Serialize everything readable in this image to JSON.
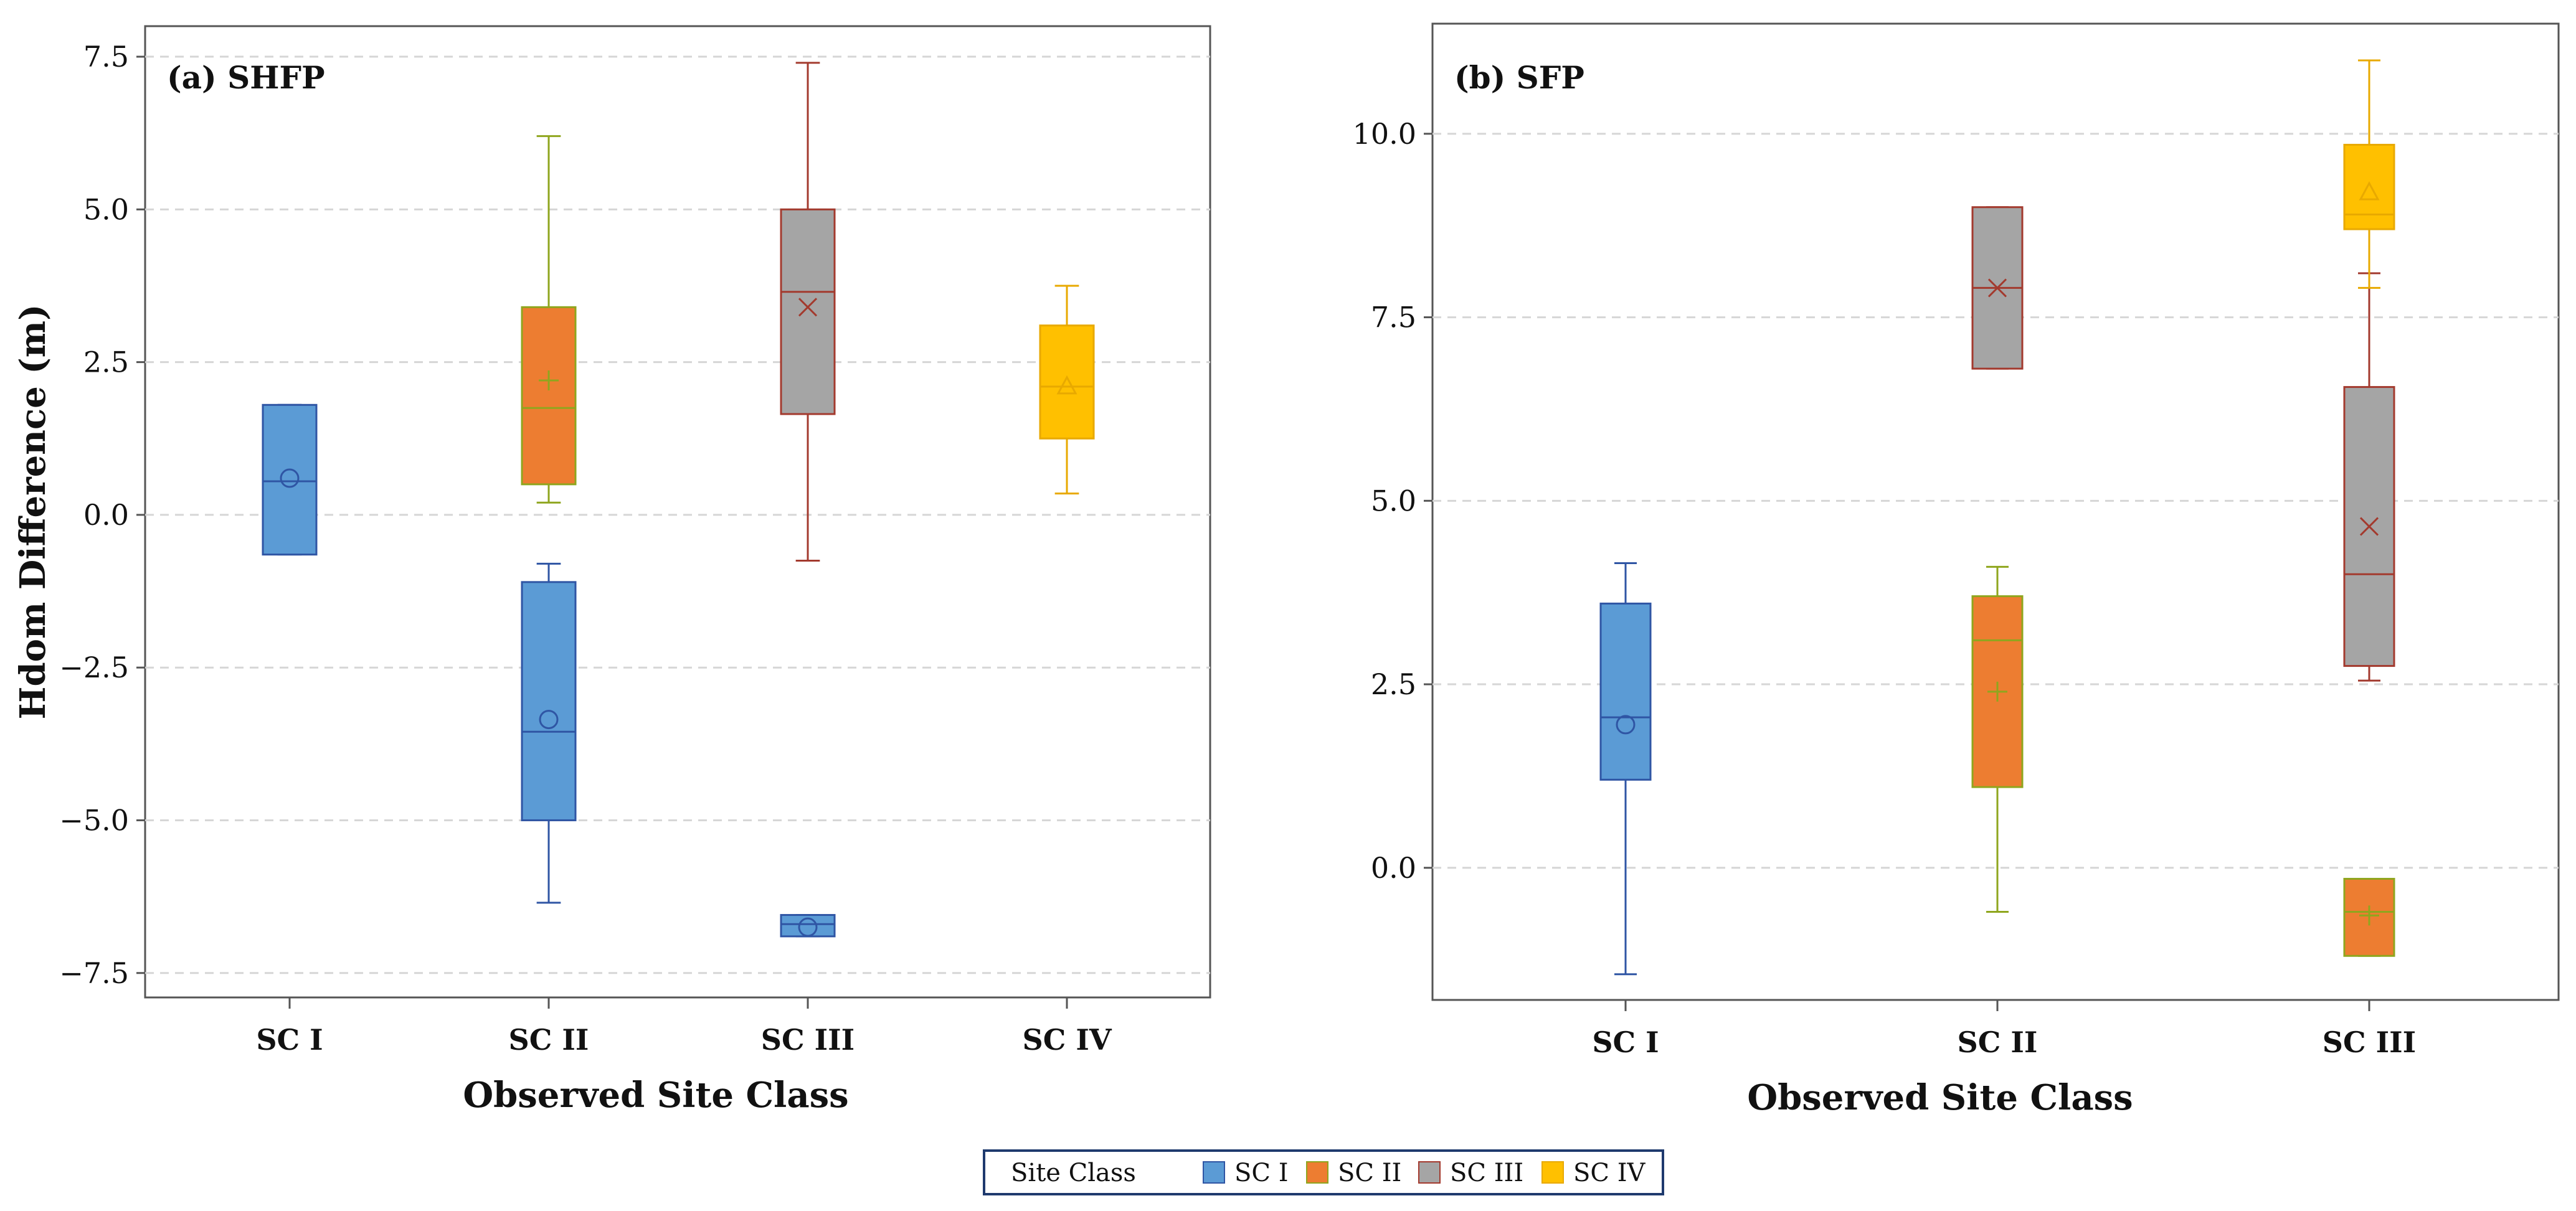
{
  "chart_data": [
    {
      "type": "box",
      "title": "(a)  SHFP",
      "xlabel": "Observed Site Class",
      "ylabel": "Hdom Difference (m)",
      "categories": [
        "SC I",
        "SC II",
        "SC III",
        "SC IV"
      ],
      "ylim": [
        -7.9,
        8.0
      ],
      "yticks": [
        -7.5,
        -5.0,
        -2.5,
        0.0,
        2.5,
        5.0,
        7.5
      ],
      "ytick_labels": [
        "−7.5",
        "−5.0",
        "−2.5",
        "0.0",
        "2.5",
        "5.0",
        "7.5"
      ],
      "grid": "horizontal dashed",
      "series": [
        {
          "name": "SC I",
          "boxes": [
            {
              "category": "SC I",
              "min": -0.65,
              "q1": -0.65,
              "median": 0.55,
              "q3": 1.8,
              "max": 1.8,
              "mean": 0.6
            },
            {
              "category": "SC II",
              "min": -6.35,
              "q1": -5.0,
              "median": -3.55,
              "q3": -1.1,
              "max": -0.8,
              "mean": -3.35
            },
            {
              "category": "SC III",
              "min": -6.9,
              "q1": -6.9,
              "median": -6.7,
              "q3": -6.55,
              "max": -6.55,
              "mean": -6.75
            }
          ]
        },
        {
          "name": "SC II",
          "boxes": [
            {
              "category": "SC II",
              "min": 0.2,
              "q1": 0.5,
              "median": 1.75,
              "q3": 3.4,
              "max": 6.2,
              "mean": 2.2
            }
          ]
        },
        {
          "name": "SC III",
          "boxes": [
            {
              "category": "SC III",
              "min": -0.75,
              "q1": 1.65,
              "median": 3.65,
              "q3": 5.0,
              "max": 7.4,
              "mean": 3.4
            }
          ]
        },
        {
          "name": "SC IV",
          "boxes": [
            {
              "category": "SC IV",
              "min": 0.35,
              "q1": 1.25,
              "median": 2.1,
              "q3": 3.1,
              "max": 3.75,
              "mean": 2.1
            }
          ]
        }
      ]
    },
    {
      "type": "box",
      "title": "(b)  SFP",
      "xlabel": "Observed Site Class",
      "ylabel": "",
      "categories": [
        "SC I",
        "SC II",
        "SC III"
      ],
      "ylim": [
        -1.8,
        11.5
      ],
      "yticks": [
        0.0,
        2.5,
        5.0,
        7.5,
        10.0
      ],
      "ytick_labels": [
        "0.0",
        "2.5",
        "5.0",
        "7.5",
        "10.0"
      ],
      "grid": "horizontal dashed",
      "series": [
        {
          "name": "SC I",
          "boxes": [
            {
              "category": "SC I",
              "min": -1.45,
              "q1": 1.2,
              "median": 2.05,
              "q3": 3.6,
              "max": 4.15,
              "mean": 1.95
            }
          ]
        },
        {
          "name": "SC II",
          "boxes": [
            {
              "category": "SC II",
              "min": -0.6,
              "q1": 1.1,
              "median": 3.1,
              "q3": 3.7,
              "max": 4.1,
              "mean": 2.4
            },
            {
              "category": "SC III",
              "min": -1.2,
              "q1": -1.2,
              "median": -0.6,
              "q3": -0.15,
              "max": -0.15,
              "mean": -0.65
            }
          ]
        },
        {
          "name": "SC III",
          "boxes": [
            {
              "category": "SC II",
              "min": 6.8,
              "q1": 6.8,
              "median": 7.9,
              "q3": 9.0,
              "max": 9.0,
              "mean": 7.9
            },
            {
              "category": "SC III",
              "min": 2.55,
              "q1": 2.75,
              "median": 4.0,
              "q3": 6.55,
              "max": 8.1,
              "mean": 4.65
            }
          ]
        },
        {
          "name": "SC IV",
          "boxes": [
            {
              "category": "SC III",
              "min": 7.9,
              "q1": 8.7,
              "median": 8.9,
              "q3": 9.85,
              "max": 11.0,
              "mean": 9.2
            }
          ]
        }
      ]
    }
  ],
  "legend": {
    "title": "Site Class",
    "entries": [
      "SC I",
      "SC II",
      "SC III",
      "SC IV"
    ]
  },
  "series_styles": {
    "SC I": {
      "fill": "#5b9bd5",
      "stroke": "#2f55a4",
      "marker": "circle"
    },
    "SC II": {
      "fill": "#ed7d31",
      "stroke": "#8fa61e",
      "marker": "plus"
    },
    "SC III": {
      "fill": "#a5a5a5",
      "stroke": "#a33a2e",
      "marker": "x"
    },
    "SC IV": {
      "fill": "#ffc000",
      "stroke": "#e8a900",
      "marker": "triangle"
    }
  }
}
